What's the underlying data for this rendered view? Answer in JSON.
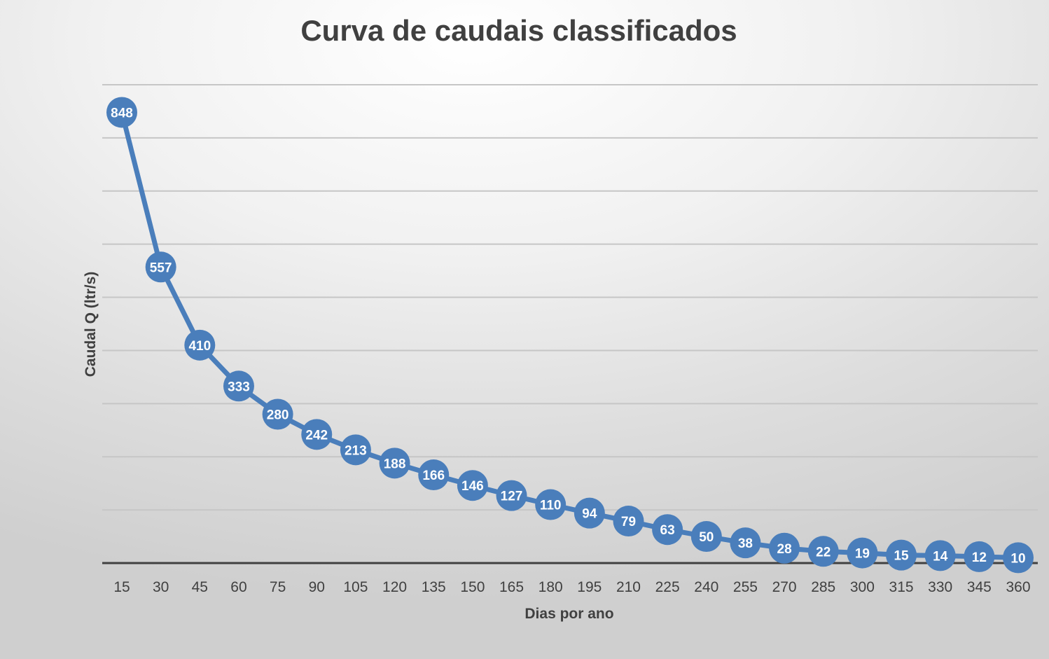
{
  "chart_data": {
    "type": "line",
    "title": "Curva de caudais classificados",
    "xlabel": "Dias por ano",
    "ylabel": "Caudal Q (ltr/s)",
    "x": [
      15,
      30,
      45,
      60,
      75,
      90,
      105,
      120,
      135,
      150,
      165,
      180,
      195,
      210,
      225,
      240,
      255,
      270,
      285,
      300,
      315,
      330,
      345,
      360
    ],
    "series": [
      {
        "values": [
          848,
          557,
          410,
          333,
          280,
          242,
          213,
          188,
          166,
          146,
          127,
          110,
          94,
          79,
          63,
          50,
          38,
          28,
          22,
          19,
          15,
          14,
          12,
          10
        ]
      }
    ],
    "ylim": [
      0,
      900
    ],
    "y_gridline_step": 100,
    "grid": true,
    "y_tick_labels_shown": false,
    "data_labels": true,
    "legend": "none",
    "colors": {
      "series": "#4a7ebb",
      "data_label_text": "#ffffff",
      "text": "#404040",
      "gridline": "#c6c6c6",
      "baseline": "#404040"
    }
  }
}
